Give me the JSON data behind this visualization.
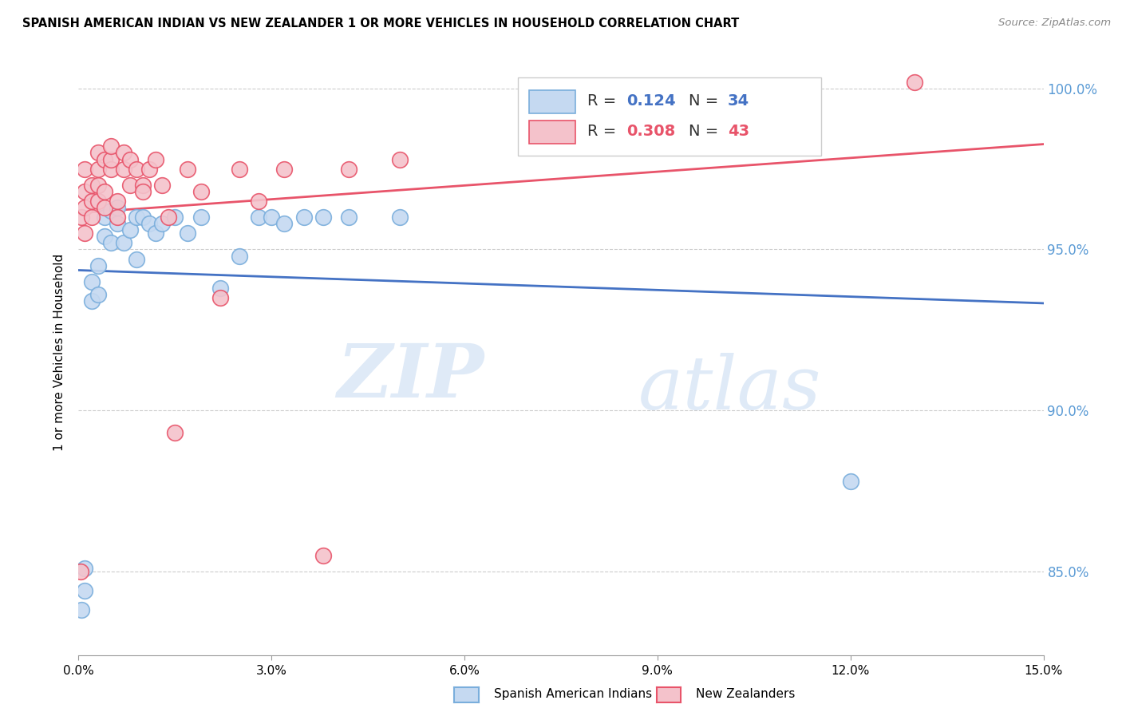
{
  "title": "SPANISH AMERICAN INDIAN VS NEW ZEALANDER 1 OR MORE VEHICLES IN HOUSEHOLD CORRELATION CHART",
  "source": "Source: ZipAtlas.com",
  "ylabel": "1 or more Vehicles in Household",
  "xmin": 0.0,
  "xmax": 0.15,
  "ymin": 0.824,
  "ymax": 1.012,
  "yticks": [
    0.85,
    0.9,
    0.95,
    1.0
  ],
  "ytick_labels": [
    "85.0%",
    "90.0%",
    "95.0%",
    "100.0%"
  ],
  "ytick_color": "#5b9bd5",
  "blue_R": 0.124,
  "blue_N": 34,
  "pink_R": 0.308,
  "pink_N": 43,
  "blue_line_color": "#4472c4",
  "pink_line_color": "#e8546a",
  "blue_scatter_face": "#c5d9f1",
  "pink_scatter_face": "#f4c2cb",
  "blue_scatter_edge": "#7aaedc",
  "pink_scatter_edge": "#e8546a",
  "watermark_zip": "ZIP",
  "watermark_atlas": "atlas",
  "legend_label_blue": "Spanish American Indians",
  "legend_label_pink": "New Zealanders",
  "blue_x": [
    0.0005,
    0.001,
    0.001,
    0.002,
    0.002,
    0.003,
    0.003,
    0.004,
    0.004,
    0.005,
    0.005,
    0.006,
    0.006,
    0.007,
    0.008,
    0.009,
    0.009,
    0.01,
    0.011,
    0.012,
    0.013,
    0.015,
    0.017,
    0.019,
    0.022,
    0.025,
    0.028,
    0.03,
    0.032,
    0.035,
    0.038,
    0.042,
    0.05,
    0.12
  ],
  "blue_y": [
    0.838,
    0.844,
    0.851,
    0.934,
    0.94,
    0.936,
    0.945,
    0.96,
    0.954,
    0.962,
    0.952,
    0.958,
    0.963,
    0.952,
    0.956,
    0.96,
    0.947,
    0.96,
    0.958,
    0.955,
    0.958,
    0.96,
    0.955,
    0.96,
    0.938,
    0.948,
    0.96,
    0.96,
    0.958,
    0.96,
    0.96,
    0.96,
    0.96,
    0.878
  ],
  "pink_x": [
    0.0003,
    0.0005,
    0.001,
    0.001,
    0.001,
    0.001,
    0.002,
    0.002,
    0.002,
    0.003,
    0.003,
    0.003,
    0.003,
    0.004,
    0.004,
    0.004,
    0.005,
    0.005,
    0.005,
    0.006,
    0.006,
    0.007,
    0.007,
    0.008,
    0.008,
    0.009,
    0.01,
    0.01,
    0.011,
    0.012,
    0.013,
    0.014,
    0.015,
    0.017,
    0.019,
    0.022,
    0.025,
    0.028,
    0.032,
    0.038,
    0.042,
    0.05,
    0.13
  ],
  "pink_y": [
    0.85,
    0.96,
    0.955,
    0.963,
    0.968,
    0.975,
    0.96,
    0.965,
    0.97,
    0.965,
    0.97,
    0.975,
    0.98,
    0.963,
    0.968,
    0.978,
    0.975,
    0.978,
    0.982,
    0.96,
    0.965,
    0.975,
    0.98,
    0.97,
    0.978,
    0.975,
    0.97,
    0.968,
    0.975,
    0.978,
    0.97,
    0.96,
    0.893,
    0.975,
    0.968,
    0.935,
    0.975,
    0.965,
    0.975,
    0.855,
    0.975,
    0.978,
    1.002
  ]
}
